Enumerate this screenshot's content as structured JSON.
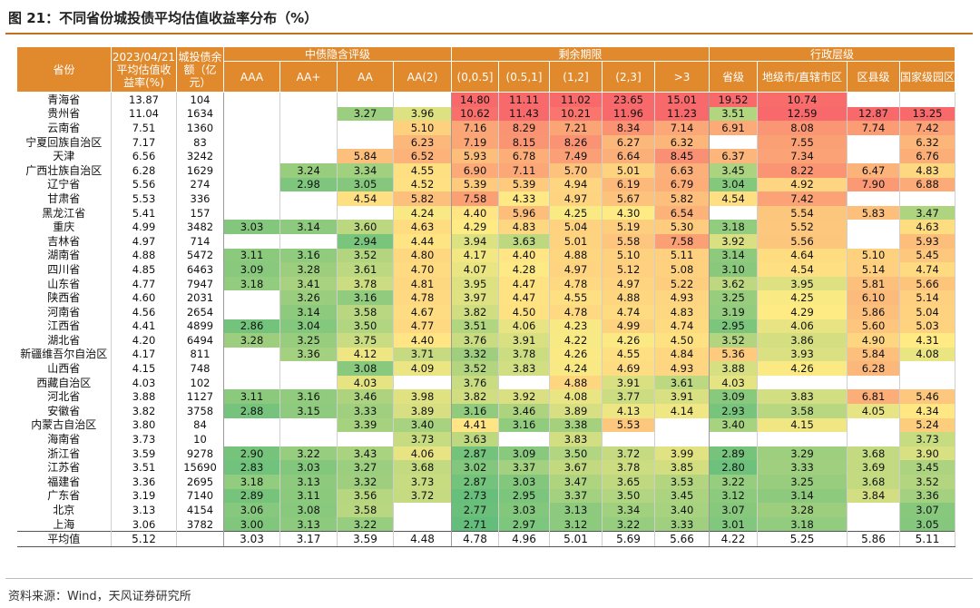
{
  "title": "图 21：不同省份城投债平均估值收益率分布（%）",
  "header": {
    "province": "省份",
    "yield_col": "2023/04/21\n平均估值收\n益率(%)",
    "balance_col": "城投债余\n额（亿\n元）",
    "group_rating": "中债隐含评级",
    "group_term": "剩余期限",
    "group_admin": "行政层级",
    "rating_cols": [
      "AAA",
      "AA+",
      "AA",
      "AA(2)"
    ],
    "term_cols": [
      "(0,0.5]",
      "(0.5,1]",
      "(1,2]",
      "(2,3]",
      ">3"
    ],
    "admin_cols": [
      "省级",
      "地级市/直辖市区",
      "区县级",
      "国家级园区"
    ]
  },
  "rows": [
    {
      "p": "青海省",
      "y": "13.87",
      "b": "104",
      "v": [
        "",
        "",
        "",
        "",
        "14.80",
        "11.11",
        "11.02",
        "23.65",
        "15.01",
        "19.52",
        "10.74",
        "",
        ""
      ]
    },
    {
      "p": "贵州省",
      "y": "11.04",
      "b": "1634",
      "v": [
        "",
        "",
        "3.27",
        "3.96",
        "10.62",
        "11.43",
        "10.21",
        "11.96",
        "11.23",
        "3.51",
        "12.59",
        "12.87",
        "13.25"
      ]
    },
    {
      "p": "云南省",
      "y": "7.51",
      "b": "1360",
      "v": [
        "",
        "",
        "",
        "5.10",
        "7.16",
        "8.29",
        "7.21",
        "8.34",
        "7.14",
        "6.91",
        "8.08",
        "7.74",
        "7.42"
      ]
    },
    {
      "p": "宁夏回族自治区",
      "y": "7.17",
      "b": "83",
      "v": [
        "",
        "",
        "",
        "6.23",
        "7.19",
        "8.15",
        "8.26",
        "6.27",
        "6.32",
        "",
        "7.55",
        "",
        "6.32"
      ]
    },
    {
      "p": "天津",
      "y": "6.56",
      "b": "3242",
      "v": [
        "",
        "",
        "5.84",
        "6.52",
        "5.93",
        "6.78",
        "7.49",
        "6.64",
        "8.45",
        "6.37",
        "7.34",
        "",
        "6.76"
      ]
    },
    {
      "p": "广西壮族自治区",
      "y": "6.28",
      "b": "1629",
      "v": [
        "",
        "3.24",
        "3.34",
        "4.55",
        "6.90",
        "7.11",
        "5.70",
        "5.01",
        "6.63",
        "3.45",
        "8.22",
        "6.47",
        "4.83"
      ]
    },
    {
      "p": "辽宁省",
      "y": "5.56",
      "b": "274",
      "v": [
        "",
        "2.98",
        "3.05",
        "4.52",
        "5.39",
        "5.39",
        "4.94",
        "6.19",
        "6.79",
        "3.04",
        "4.92",
        "7.90",
        "6.88"
      ]
    },
    {
      "p": "甘肃省",
      "y": "5.53",
      "b": "336",
      "v": [
        "",
        "",
        "4.54",
        "5.82",
        "7.58",
        "4.33",
        "4.97",
        "5.67",
        "5.82",
        "4.54",
        "7.42",
        "",
        ""
      ]
    },
    {
      "p": "黑龙江省",
      "y": "5.41",
      "b": "157",
      "v": [
        "",
        "",
        "",
        "4.24",
        "4.40",
        "5.96",
        "4.25",
        "4.30",
        "6.54",
        "",
        "5.54",
        "5.83",
        "3.47"
      ]
    },
    {
      "p": "重庆",
      "y": "4.99",
      "b": "3482",
      "v": [
        "3.03",
        "3.14",
        "3.60",
        "4.63",
        "4.29",
        "4.83",
        "5.04",
        "5.19",
        "5.30",
        "3.18",
        "5.52",
        "",
        "4.63"
      ]
    },
    {
      "p": "吉林省",
      "y": "4.97",
      "b": "714",
      "v": [
        "",
        "",
        "2.94",
        "4.44",
        "3.94",
        "3.63",
        "5.01",
        "5.58",
        "7.58",
        "3.92",
        "5.56",
        "",
        "5.93"
      ]
    },
    {
      "p": "湖南省",
      "y": "4.88",
      "b": "5472",
      "v": [
        "3.11",
        "3.16",
        "3.52",
        "4.80",
        "4.17",
        "4.40",
        "4.88",
        "5.10",
        "5.11",
        "3.14",
        "4.64",
        "5.10",
        "5.45"
      ]
    },
    {
      "p": "四川省",
      "y": "4.85",
      "b": "6463",
      "v": [
        "3.09",
        "3.28",
        "3.61",
        "4.70",
        "4.07",
        "4.28",
        "4.97",
        "5.12",
        "5.08",
        "3.10",
        "4.54",
        "5.14",
        "4.74"
      ]
    },
    {
      "p": "山东省",
      "y": "4.77",
      "b": "7947",
      "v": [
        "3.18",
        "3.41",
        "3.78",
        "4.81",
        "3.95",
        "4.47",
        "4.78",
        "4.97",
        "5.22",
        "3.62",
        "3.95",
        "5.81",
        "5.66"
      ]
    },
    {
      "p": "陕西省",
      "y": "4.60",
      "b": "2031",
      "v": [
        "",
        "3.26",
        "3.16",
        "4.78",
        "3.97",
        "4.47",
        "4.55",
        "4.88",
        "4.93",
        "3.25",
        "4.25",
        "6.10",
        "5.14"
      ]
    },
    {
      "p": "河南省",
      "y": "4.56",
      "b": "2654",
      "v": [
        "",
        "3.14",
        "3.58",
        "4.67",
        "3.82",
        "4.50",
        "4.78",
        "4.74",
        "4.83",
        "3.19",
        "4.29",
        "5.86",
        "5.04"
      ]
    },
    {
      "p": "江西省",
      "y": "4.41",
      "b": "4899",
      "v": [
        "2.86",
        "3.04",
        "3.50",
        "4.77",
        "3.51",
        "4.06",
        "4.23",
        "4.99",
        "4.74",
        "2.95",
        "4.06",
        "5.60",
        "5.03"
      ]
    },
    {
      "p": "湖北省",
      "y": "4.20",
      "b": "6494",
      "v": [
        "3.28",
        "3.25",
        "3.75",
        "4.40",
        "3.76",
        "3.91",
        "4.22",
        "4.26",
        "4.50",
        "3.52",
        "3.86",
        "4.90",
        "4.31"
      ]
    },
    {
      "p": "新疆维吾尔自治区",
      "y": "4.17",
      "b": "811",
      "v": [
        "",
        "3.36",
        "4.12",
        "3.71",
        "3.32",
        "3.78",
        "4.26",
        "4.55",
        "4.84",
        "5.36",
        "3.93",
        "5.84",
        "4.08"
      ]
    },
    {
      "p": "山西省",
      "y": "4.15",
      "b": "748",
      "v": [
        "",
        "",
        "3.08",
        "4.09",
        "3.52",
        "3.83",
        "4.24",
        "4.69",
        "4.93",
        "3.88",
        "4.26",
        "6.28",
        ""
      ]
    },
    {
      "p": "西藏自治区",
      "y": "4.03",
      "b": "102",
      "v": [
        "",
        "",
        "4.03",
        "",
        "3.76",
        "",
        "4.88",
        "3.91",
        "3.61",
        "4.03",
        "",
        "",
        ""
      ]
    },
    {
      "p": "河北省",
      "y": "3.88",
      "b": "1127",
      "v": [
        "3.11",
        "3.16",
        "3.46",
        "3.98",
        "3.82",
        "3.92",
        "4.08",
        "3.77",
        "3.91",
        "3.09",
        "3.83",
        "6.81",
        "5.46"
      ]
    },
    {
      "p": "安徽省",
      "y": "3.82",
      "b": "3758",
      "v": [
        "2.88",
        "3.15",
        "3.33",
        "3.89",
        "3.16",
        "3.46",
        "3.89",
        "4.13",
        "4.14",
        "2.93",
        "3.58",
        "4.05",
        "4.34"
      ]
    },
    {
      "p": "内蒙古自治区",
      "y": "3.80",
      "b": "84",
      "v": [
        "",
        "",
        "3.39",
        "3.40",
        "4.41",
        "3.16",
        "3.38",
        "5.53",
        "",
        "3.40",
        "4.15",
        "",
        "5.24"
      ]
    },
    {
      "p": "海南省",
      "y": "3.73",
      "b": "10",
      "v": [
        "",
        "",
        "",
        "3.73",
        "3.63",
        "",
        "3.83",
        "",
        "",
        "",
        "",
        "",
        "3.73"
      ]
    },
    {
      "p": "浙江省",
      "y": "3.59",
      "b": "9278",
      "v": [
        "2.90",
        "3.22",
        "3.43",
        "4.06",
        "2.87",
        "3.09",
        "3.50",
        "3.72",
        "3.99",
        "2.89",
        "3.29",
        "3.68",
        "3.90"
      ]
    },
    {
      "p": "江苏省",
      "y": "3.51",
      "b": "15690",
      "v": [
        "2.83",
        "3.03",
        "3.27",
        "3.68",
        "3.02",
        "3.37",
        "3.67",
        "3.78",
        "3.85",
        "2.80",
        "3.33",
        "3.69",
        "3.45"
      ]
    },
    {
      "p": "福建省",
      "y": "3.36",
      "b": "2695",
      "v": [
        "3.18",
        "3.13",
        "3.32",
        "3.73",
        "2.87",
        "3.03",
        "3.47",
        "3.65",
        "3.53",
        "3.22",
        "3.25",
        "3.68",
        "3.52"
      ]
    },
    {
      "p": "广东省",
      "y": "3.19",
      "b": "7140",
      "v": [
        "2.89",
        "3.11",
        "3.56",
        "3.72",
        "2.73",
        "2.95",
        "3.37",
        "3.50",
        "3.45",
        "3.12",
        "3.14",
        "3.84",
        "3.36"
      ]
    },
    {
      "p": "北京",
      "y": "3.13",
      "b": "4154",
      "v": [
        "3.06",
        "3.08",
        "3.58",
        "",
        "2.77",
        "3.03",
        "3.13",
        "3.34",
        "3.40",
        "3.07",
        "3.28",
        "",
        "3.07"
      ]
    },
    {
      "p": "上海",
      "y": "3.06",
      "b": "3782",
      "v": [
        "3.00",
        "3.13",
        "3.22",
        "",
        "2.71",
        "2.97",
        "3.12",
        "3.22",
        "3.33",
        "3.01",
        "3.18",
        "",
        "3.05"
      ]
    }
  ],
  "average_row": {
    "p": "平均值",
    "y": "5.12",
    "b": "",
    "v": [
      "3.03",
      "3.17",
      "3.59",
      "4.48",
      "4.78",
      "4.96",
      "5.01",
      "5.69",
      "5.66",
      "4.22",
      "5.25",
      "5.86",
      "5.11"
    ]
  },
  "colors": {
    "header": "#e08a2d",
    "low": "#63be7b",
    "mid": "#ffeb84",
    "high": "#f8696b",
    "rule": "#c0701f"
  },
  "footnote": "资料来源：Wind，天风证券研究所"
}
